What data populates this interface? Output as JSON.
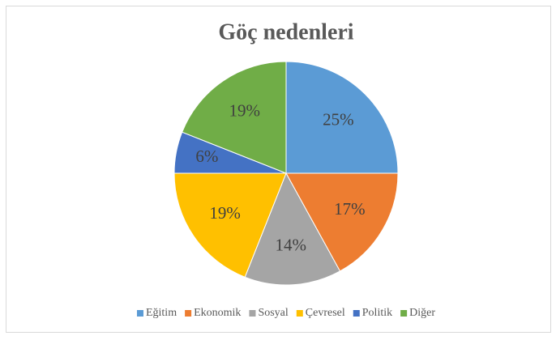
{
  "chart_data": {
    "type": "pie",
    "title": "Göç nedenleri",
    "categories": [
      "Eğitim",
      "Ekonomik",
      "Sosyal",
      "Çevresel",
      "Politik",
      "Diğer"
    ],
    "values": [
      25,
      17,
      14,
      19,
      6,
      19
    ],
    "value_labels": [
      "25%",
      "17%",
      "14%",
      "19%",
      "6%",
      "19%"
    ],
    "colors": [
      "#5b9bd5",
      "#ed7d31",
      "#a5a5a5",
      "#ffc000",
      "#4472c4",
      "#70ad47"
    ],
    "legend": "bottom"
  }
}
